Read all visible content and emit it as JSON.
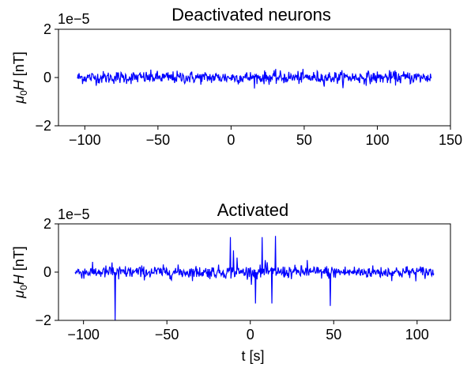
{
  "chart_data": [
    {
      "type": "line",
      "title": "Deactivated neurons",
      "xlabel": "",
      "ylabel_main": "μ",
      "ylabel_sub": "0",
      "ylabel_italic": "H",
      "ylabel_unit": " [nT]",
      "offset_text": "1e−5",
      "line_color": "#0000ff",
      "xlim": [
        -118,
        150
      ],
      "ylim": [
        -2,
        2
      ],
      "xticks": [
        -100,
        -50,
        0,
        50,
        100,
        150
      ],
      "xtick_labels": [
        "−100",
        "−50",
        "0",
        "50",
        "100",
        "150"
      ],
      "yticks": [
        -2,
        0,
        2
      ],
      "ytick_labels": [
        "−2",
        "0",
        "2"
      ],
      "x_range": [
        -105,
        137
      ],
      "baseline_amplitude": 0.13,
      "spikes": [],
      "series": [
        {
          "values_description_only": false
        }
      ]
    },
    {
      "type": "line",
      "title": "Activated",
      "xlabel": "t [s]",
      "ylabel_main": "μ",
      "ylabel_sub": "0",
      "ylabel_italic": "H",
      "ylabel_unit": " [nT]",
      "offset_text": "1e−5",
      "line_color": "#0000ff",
      "xlim": [
        -115,
        120
      ],
      "ylim": [
        -2,
        2
      ],
      "xticks": [
        -100,
        -50,
        0,
        50,
        100
      ],
      "xtick_labels": [
        "−100",
        "−50",
        "0",
        "50",
        "100"
      ],
      "yticks": [
        -2,
        0,
        2
      ],
      "ytick_labels": [
        "−2",
        "0",
        "2"
      ],
      "x_range": [
        -105,
        110
      ],
      "baseline_amplitude": 0.13,
      "spikes": [
        {
          "x": -83,
          "y": 0.4
        },
        {
          "x": -81,
          "y": -2.0
        },
        {
          "x": -79,
          "y": -0.3
        },
        {
          "x": -12,
          "y": 1.45
        },
        {
          "x": -10,
          "y": 0.9
        },
        {
          "x": -8,
          "y": 0.6
        },
        {
          "x": 3,
          "y": -1.3
        },
        {
          "x": 7,
          "y": 1.45
        },
        {
          "x": 9,
          "y": 0.5
        },
        {
          "x": 13,
          "y": -1.3
        },
        {
          "x": 15,
          "y": 1.5
        },
        {
          "x": 34,
          "y": 0.5
        },
        {
          "x": 48,
          "y": -1.4
        }
      ]
    }
  ]
}
